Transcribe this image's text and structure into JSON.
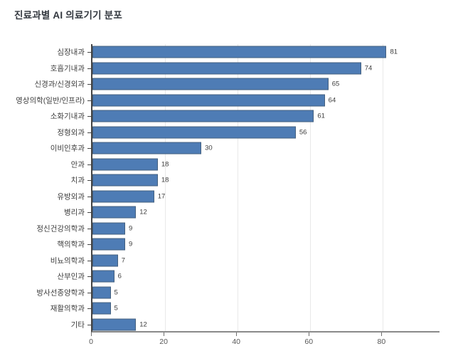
{
  "title": "진료과별 AI 의료기기 분포",
  "chart_data": {
    "type": "bar",
    "orientation": "horizontal",
    "title": "진료과별 AI 의료기기 분포",
    "xlabel": "",
    "ylabel": "",
    "categories": [
      "심장내과",
      "호흡기내과",
      "신경과/신경외과",
      "영상의학(일반/인프라)",
      "소화기내과",
      "정형외과",
      "이비인후과",
      "안과",
      "치과",
      "유방외과",
      "병리과",
      "정신건강의학과",
      "핵의학과",
      "비뇨의학과",
      "산부인과",
      "방사선종양학과",
      "재활의학과",
      "기타"
    ],
    "values": [
      81,
      74,
      65,
      64,
      61,
      56,
      30,
      18,
      18,
      17,
      12,
      9,
      9,
      7,
      6,
      5,
      5,
      12
    ],
    "value_labels_shown": true,
    "xticks": [
      0,
      20,
      40,
      60,
      80
    ],
    "xlim": [
      0,
      96
    ],
    "grid": true,
    "legend": "none",
    "colors": {
      "bar_fill": "#4e7cb5",
      "bar_border": "#44607f",
      "gridline": "#e9e9e9",
      "title_text": "#33383f",
      "label_text": "#3d3d3d",
      "tick_text": "#575757",
      "y_axis_line": "#454545",
      "x_axis_line": "#8a8a8a",
      "background": "#ffffff"
    }
  }
}
